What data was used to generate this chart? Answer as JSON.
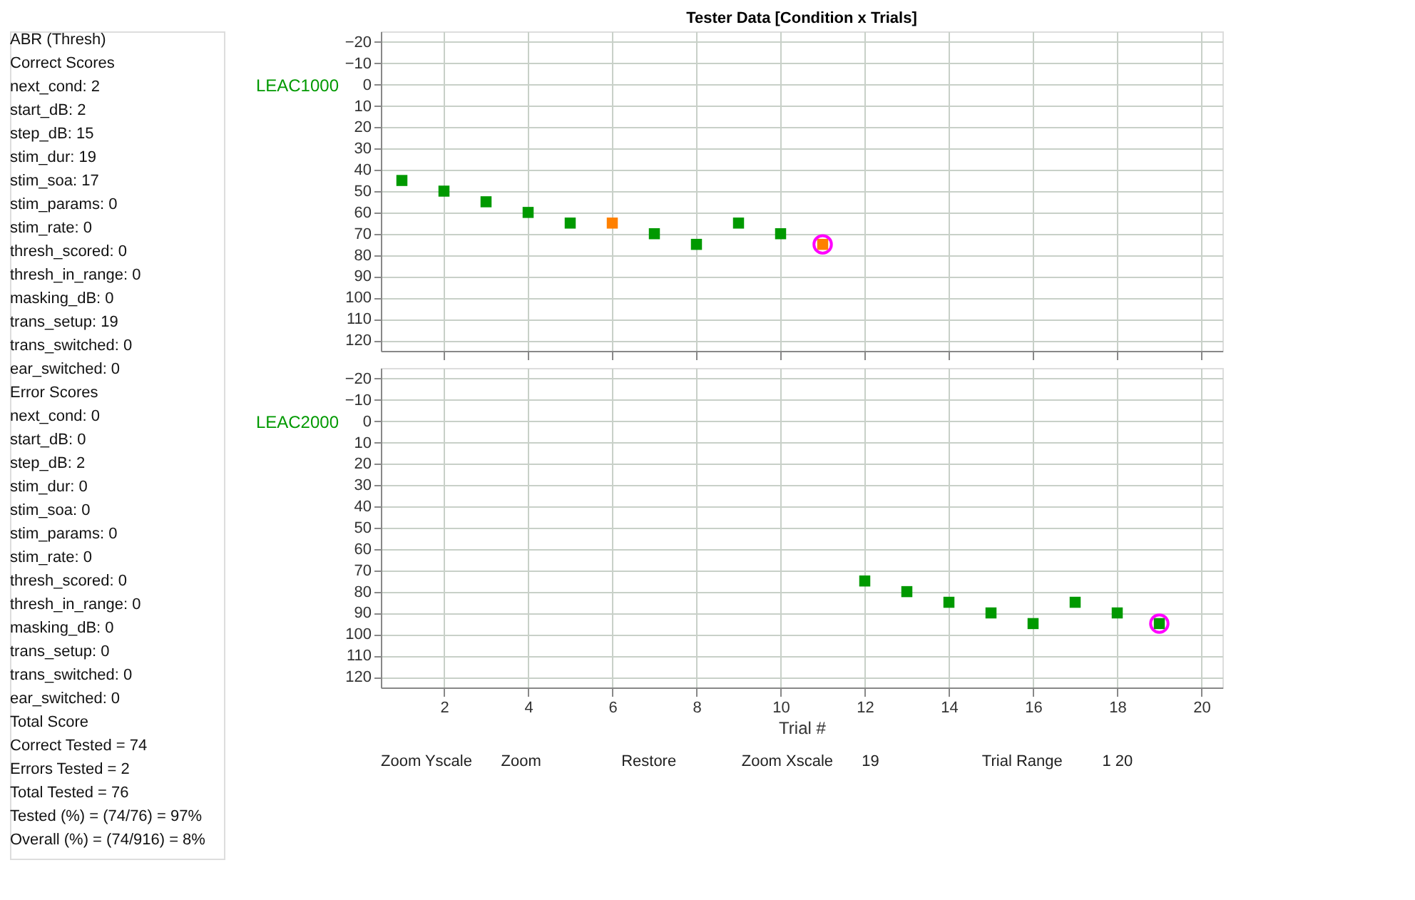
{
  "chart_data": [
    {
      "type": "scatter",
      "title": "Tester Data [Condition x Trials]",
      "ylabel": "LEAC1000",
      "xlim": [
        0.5,
        20.5
      ],
      "ylim": [
        125,
        -25
      ],
      "xticks": [
        2,
        4,
        6,
        8,
        10,
        12,
        14,
        16,
        18,
        20
      ],
      "yticks": [
        -20,
        -10,
        0,
        10,
        20,
        30,
        40,
        50,
        60,
        70,
        80,
        90,
        100,
        110,
        120
      ],
      "grid": true,
      "legend": false,
      "tick_labels": "y",
      "marker": "square",
      "series": [
        {
          "color": "#009900",
          "x": [
            1,
            2,
            3,
            4,
            5,
            7,
            8,
            9,
            10
          ],
          "values": [
            45,
            50,
            55,
            60,
            65,
            70,
            75,
            65,
            70
          ]
        },
        {
          "color": "#ff8000",
          "x": [
            6,
            11
          ],
          "values": [
            65,
            75
          ]
        },
        {
          "color": "#ff00ff",
          "marker": "circle",
          "x": [
            11
          ],
          "values": [
            75
          ]
        }
      ],
      "annotations": [
        "ABR (Thresh)",
        "Correct Scores",
        "next_cond: 2",
        "start_dB: 2",
        "step_dB: 15",
        "stim_dur: 19",
        "stim_soa: 17",
        "stim_params: 0",
        "stim_rate: 0",
        "thresh_scored: 0",
        "thresh_in_range: 0",
        "masking_dB: 0",
        "trans_setup: 19",
        "trans_switched: 0",
        "ear_switched: 0",
        "Error Scores",
        "next_cond: 0",
        "start_dB: 0",
        "step_dB: 2",
        "stim_dur: 0",
        "stim_soa: 0",
        "stim_params: 0",
        "stim_rate: 0",
        "thresh_scored: 0",
        "thresh_in_range: 0",
        "masking_dB: 0",
        "trans_setup: 0",
        "trans_switched: 0",
        "ear_switched: 0",
        "Total Score",
        "Correct Tested = 74",
        "Errors Tested = 2",
        "Total Tested = 76",
        "Tested (%) = (74/76) = 97%",
        "Overall (%) = (74/916) = 8%"
      ]
    },
    {
      "type": "scatter",
      "ylabel": "LEAC2000",
      "xlabel": "Trial #",
      "xlim": [
        0.5,
        20.5
      ],
      "ylim": [
        125,
        -25
      ],
      "xticks": [
        2,
        4,
        6,
        8,
        10,
        12,
        14,
        16,
        18,
        20
      ],
      "yticks": [
        -20,
        -10,
        0,
        10,
        20,
        30,
        40,
        50,
        60,
        70,
        80,
        90,
        100,
        110,
        120
      ],
      "grid": true,
      "legend": false,
      "marker": "square",
      "series": [
        {
          "color": "#009900",
          "x": [
            12,
            13,
            14,
            15,
            16,
            17,
            18,
            19
          ],
          "values": [
            75,
            80,
            85,
            90,
            95,
            85,
            90,
            95
          ]
        },
        {
          "color": "#ff00ff",
          "marker": "circle",
          "x": [
            19
          ],
          "values": [
            95
          ]
        }
      ],
      "annotations": [
        "Zoom Yscale",
        "Zoom",
        "Restore",
        "Zoom Xscale",
        "19",
        "Trial Range",
        "1 20"
      ]
    }
  ]
}
